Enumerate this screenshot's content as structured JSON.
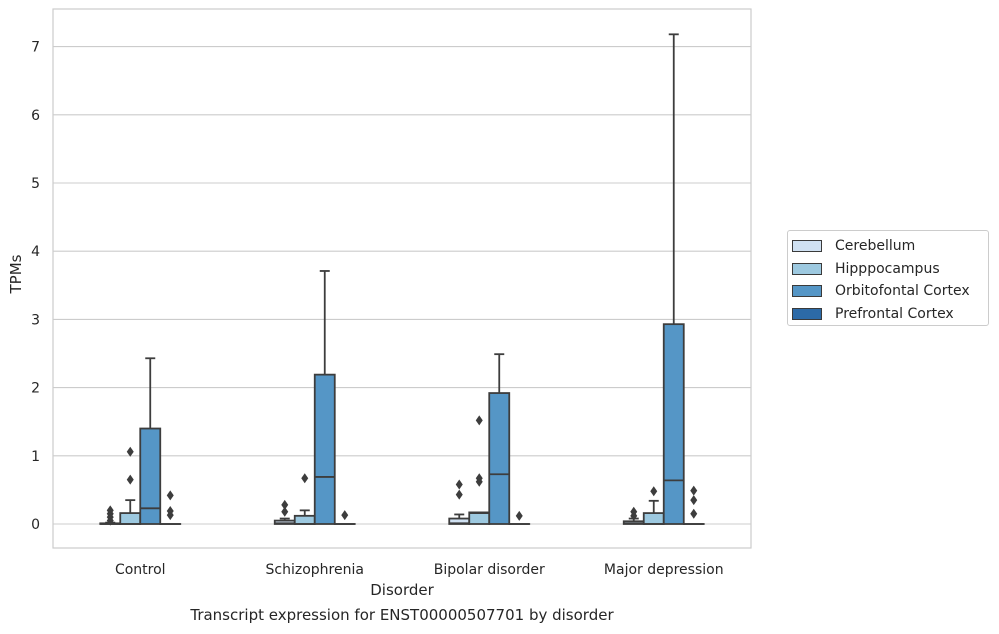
{
  "chart_data": {
    "type": "box",
    "title": "",
    "caption": "Transcript expression for ENST00000507701 by disorder",
    "xlabel": "Disorder",
    "ylabel": "TPMs",
    "ylim": [
      -0.35,
      7.55
    ],
    "yticks": [
      0,
      1,
      2,
      3,
      4,
      5,
      6,
      7
    ],
    "grid": true,
    "legend_position": "right",
    "categories": [
      "Control",
      "Schizophrenia",
      "Bipolar disorder",
      "Major depression"
    ],
    "series": [
      {
        "name": "Cerebellum",
        "color": "#d0e1f2",
        "boxes": [
          {
            "whislo": 0,
            "q1": 0,
            "med": 0,
            "q3": 0.01,
            "whishi": 0.02,
            "fliers": [
              0.05,
              0.1,
              0.15,
              0.2
            ]
          },
          {
            "whislo": 0,
            "q1": 0,
            "med": 0.01,
            "q3": 0.05,
            "whishi": 0.08,
            "fliers": [
              0.18,
              0.28
            ]
          },
          {
            "whislo": 0,
            "q1": 0,
            "med": 0.01,
            "q3": 0.08,
            "whishi": 0.14,
            "fliers": [
              0.43,
              0.58
            ]
          },
          {
            "whislo": 0,
            "q1": 0,
            "med": 0.01,
            "q3": 0.04,
            "whishi": 0.08,
            "fliers": [
              0.12,
              0.18
            ]
          }
        ]
      },
      {
        "name": "Hipppocampus",
        "color": "#9dc9e0",
        "boxes": [
          {
            "whislo": 0,
            "q1": 0,
            "med": 0,
            "q3": 0.16,
            "whishi": 0.35,
            "fliers": [
              0.65,
              1.06
            ]
          },
          {
            "whislo": 0,
            "q1": 0,
            "med": 0,
            "q3": 0.12,
            "whishi": 0.2,
            "fliers": [
              0.67
            ]
          },
          {
            "whislo": 0,
            "q1": 0,
            "med": 0.16,
            "q3": 0.17,
            "whishi": 0.17,
            "fliers": [
              0.62,
              0.67,
              1.52
            ]
          },
          {
            "whislo": 0,
            "q1": 0,
            "med": 0,
            "q3": 0.16,
            "whishi": 0.34,
            "fliers": [
              0.48
            ]
          }
        ]
      },
      {
        "name": "Orbitofontal Cortex",
        "color": "#5596c6",
        "boxes": [
          {
            "whislo": 0,
            "q1": 0,
            "med": 0.23,
            "q3": 1.4,
            "whishi": 2.43,
            "fliers": []
          },
          {
            "whislo": 0,
            "q1": 0,
            "med": 0.69,
            "q3": 2.19,
            "whishi": 3.71,
            "fliers": []
          },
          {
            "whislo": 0,
            "q1": 0,
            "med": 0.73,
            "q3": 1.92,
            "whishi": 2.49,
            "fliers": []
          },
          {
            "whislo": 0,
            "q1": 0,
            "med": 0.64,
            "q3": 2.93,
            "whishi": 7.18,
            "fliers": []
          }
        ]
      },
      {
        "name": "Prefrontal Cortex",
        "color": "#2c6aa7",
        "boxes": [
          {
            "whislo": 0,
            "q1": 0,
            "med": 0,
            "q3": 0,
            "whishi": 0,
            "fliers": [
              0.13,
              0.19,
              0.42
            ]
          },
          {
            "whislo": 0,
            "q1": 0,
            "med": 0,
            "q3": 0,
            "whishi": 0,
            "fliers": [
              0.13
            ]
          },
          {
            "whislo": 0,
            "q1": 0,
            "med": 0,
            "q3": 0,
            "whishi": 0,
            "fliers": [
              0.12
            ]
          },
          {
            "whislo": 0,
            "q1": 0,
            "med": 0,
            "q3": 0,
            "whishi": 0,
            "fliers": [
              0.15,
              0.35,
              0.49
            ]
          }
        ]
      }
    ]
  }
}
